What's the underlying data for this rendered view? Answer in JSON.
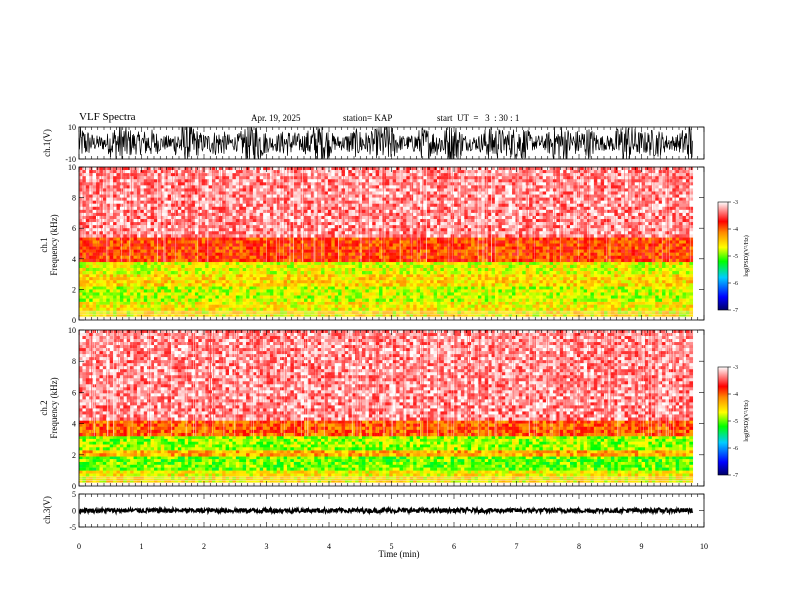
{
  "header": {
    "title": "VLF Spectra",
    "date": "Apr. 19, 2025",
    "station": "station= KAP",
    "start_ut": "start  UT  =   3  : 30 : 1"
  },
  "colors": {
    "axis": "#000000",
    "waveform": "#000000",
    "colormap": [
      "#000066",
      "#0000ff",
      "#00ccff",
      "#00ff00",
      "#ffff00",
      "#ff8800",
      "#ff0000",
      "#ffffff"
    ]
  },
  "chart_data": [
    {
      "id": "ch1_waveform",
      "type": "line",
      "ylabel": "ch.1(V)",
      "ylim": [
        -10,
        10
      ],
      "y_ticks": [
        "10",
        "-10"
      ],
      "xlim": [
        0,
        10
      ],
      "description_values": {
        "amplitude_range": [
          -10,
          10
        ]
      }
    },
    {
      "id": "ch1_spectrogram",
      "type": "heatmap",
      "ylabel": "ch.1\nFrequency  (kHz)",
      "ylabel_line1": "ch.1",
      "ylabel_line2": "Frequency  (kHz)",
      "ylim": [
        0,
        10
      ],
      "y_ticks": [
        "0",
        "2",
        "4",
        "6",
        "8",
        "10"
      ],
      "xlim": [
        0,
        10
      ],
      "colorbar": {
        "label": "log(PSD)(V²/Hz)",
        "range": [
          -7,
          -3
        ],
        "ticks": [
          "-3",
          "-4",
          "-5",
          "-6",
          "-7"
        ]
      },
      "bands": [
        {
          "f_low": 0.2,
          "f_high": 1.2,
          "level": -4.6
        },
        {
          "f_low": 1.2,
          "f_high": 2.2,
          "level": -4.8
        },
        {
          "f_low": 2.2,
          "f_high": 3.0,
          "level": -4.5
        },
        {
          "f_low": 3.0,
          "f_high": 3.8,
          "level": -4.7
        },
        {
          "f_low": 3.8,
          "f_high": 5.4,
          "level": -3.9
        },
        {
          "f_low": 5.4,
          "f_high": 10.0,
          "level": -3.3
        }
      ]
    },
    {
      "id": "ch2_spectrogram",
      "type": "heatmap",
      "ylabel": "ch.2\nFrequency  (kHz)",
      "ylabel_line1": "ch.2",
      "ylabel_line2": "Frequency  (kHz)",
      "ylim": [
        0,
        10
      ],
      "y_ticks": [
        "0",
        "2",
        "4",
        "6",
        "8",
        "10"
      ],
      "xlim": [
        0,
        10
      ],
      "colorbar": {
        "label": "log(PSD)(V²/Hz)",
        "range": [
          -7,
          -3
        ],
        "ticks": [
          "-3",
          "-4",
          "-5",
          "-6",
          "-7"
        ]
      },
      "bands": [
        {
          "f_low": 0.2,
          "f_high": 1.0,
          "level": -4.6
        },
        {
          "f_low": 1.0,
          "f_high": 1.9,
          "level": -5.0
        },
        {
          "f_low": 1.9,
          "f_high": 2.3,
          "level": -4.3
        },
        {
          "f_low": 2.3,
          "f_high": 3.2,
          "level": -4.9
        },
        {
          "f_low": 3.2,
          "f_high": 4.2,
          "level": -4.0
        },
        {
          "f_low": 4.2,
          "f_high": 10.0,
          "level": -3.3
        }
      ]
    },
    {
      "id": "ch3_waveform",
      "type": "line",
      "ylabel": "ch.3(V)",
      "ylim": [
        -5,
        5
      ],
      "y_ticks": [
        "5",
        "0",
        "-5"
      ],
      "xlim": [
        0,
        10
      ],
      "description_values": {
        "amplitude_range": [
          -0.7,
          0.7
        ]
      }
    }
  ],
  "x_axis": {
    "label": "Time  (min)",
    "ticks": [
      "0",
      "1",
      "2",
      "3",
      "4",
      "5",
      "6",
      "7",
      "8",
      "9",
      "10"
    ],
    "range": [
      0,
      10
    ]
  }
}
